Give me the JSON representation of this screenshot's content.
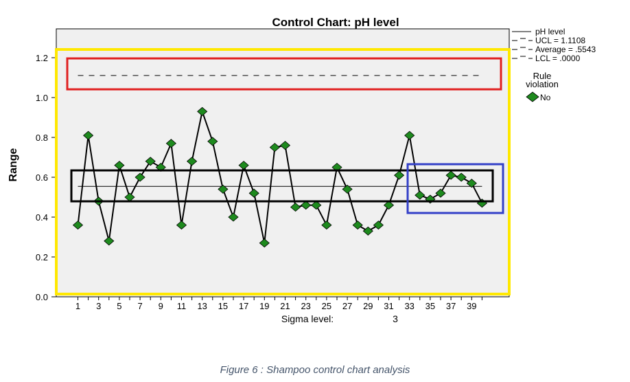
{
  "chart_data": {
    "type": "line",
    "title": "Control Chart: pH level",
    "xlabel": "",
    "ylabel": "Range",
    "ylim": [
      0,
      1.25
    ],
    "yticks": [
      "0.0",
      "0.2",
      "0.4",
      "0.6",
      "0.8",
      "1.0",
      "1.2"
    ],
    "xticks": [
      "1",
      "3",
      "5",
      "7",
      "9",
      "11",
      "13",
      "15",
      "17",
      "19",
      "21",
      "23",
      "25",
      "27",
      "29",
      "31",
      "33",
      "35",
      "37",
      "39"
    ],
    "grid": false,
    "legend_position": "right",
    "sigma_label": "Sigma level:",
    "sigma_value": "3",
    "x": [
      1,
      2,
      3,
      4,
      5,
      6,
      7,
      8,
      9,
      10,
      11,
      12,
      13,
      14,
      15,
      16,
      17,
      18,
      19,
      20,
      21,
      22,
      23,
      24,
      25,
      26,
      27,
      28,
      29,
      30,
      31,
      32,
      33,
      34,
      35,
      36,
      37,
      38,
      39,
      40
    ],
    "series": [
      {
        "name": "pH level",
        "values": [
          0.36,
          0.81,
          0.48,
          0.28,
          0.66,
          0.5,
          0.6,
          0.68,
          0.65,
          0.77,
          0.36,
          0.68,
          0.93,
          0.78,
          0.54,
          0.4,
          0.66,
          0.52,
          0.27,
          0.75,
          0.76,
          0.45,
          0.46,
          0.46,
          0.36,
          0.65,
          0.54,
          0.36,
          0.33,
          0.36,
          0.46,
          0.61,
          0.81,
          0.51,
          0.49,
          0.52,
          0.61,
          0.6,
          0.57,
          0.47
        ]
      }
    ],
    "ucl": 1.1108,
    "average": 0.5543,
    "lcl": 0.0,
    "legend": [
      "pH level",
      "UCL = 1.1108",
      "Average = .5543",
      "LCL = .0000"
    ],
    "rule_violation_title": "Rule violation",
    "rule_violation_items": [
      "No"
    ],
    "colors": {
      "plot_bg": "#f0f0f0",
      "marker_fill": "#1e8a1e",
      "line": "#000000",
      "highlight_yellow": "#ffe800",
      "highlight_red": "#e02020",
      "highlight_black": "#000000",
      "highlight_blue": "#3340c8"
    }
  },
  "caption": "Figure 6 : Shampoo control chart analysis"
}
